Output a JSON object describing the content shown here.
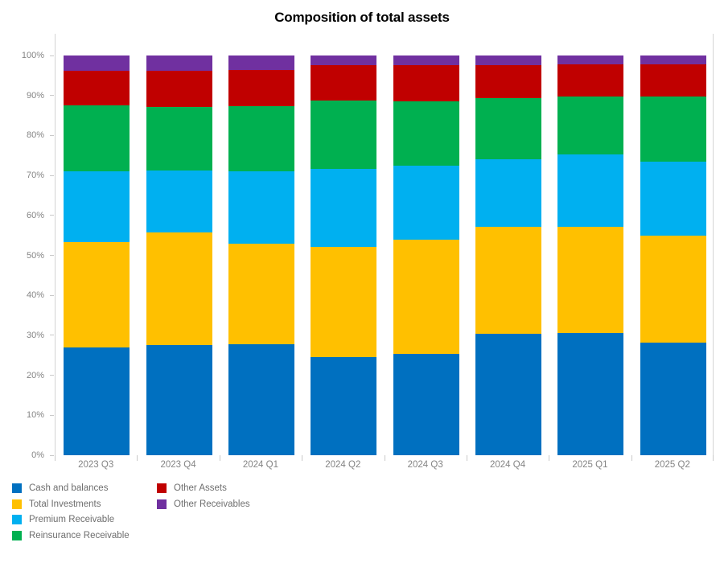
{
  "title": "Composition of total assets",
  "chart_data": {
    "type": "bar",
    "stacked": true,
    "normalized": "percent",
    "title": "Composition of total assets",
    "xlabel": "",
    "ylabel": "",
    "ylim": [
      0,
      100
    ],
    "grid": false,
    "legend_position": "bottom-left",
    "categories": [
      "2023 Q3",
      "2023 Q4",
      "2024 Q1",
      "2024 Q2",
      "2024 Q3",
      "2024 Q4",
      "2025 Q1",
      "2025 Q2"
    ],
    "y_ticks": [
      "0%",
      "10%",
      "20%",
      "30%",
      "40%",
      "50%",
      "60%",
      "70%",
      "80%",
      "90%",
      "100%"
    ],
    "series": [
      {
        "name": "Cash and balances",
        "color": "#0070C0",
        "values": [
          27.0,
          27.5,
          27.7,
          24.5,
          25.4,
          30.4,
          30.6,
          28.2
        ]
      },
      {
        "name": "Total Investments",
        "color": "#FFC000",
        "values": [
          26.3,
          28.2,
          25.3,
          27.7,
          28.5,
          26.8,
          26.5,
          26.7
        ]
      },
      {
        "name": "Premium Receivable",
        "color": "#00B0F0",
        "values": [
          17.7,
          15.6,
          18.0,
          19.4,
          18.5,
          16.8,
          18.2,
          18.6
        ]
      },
      {
        "name": "Reinsurance Receivable",
        "color": "#00B050",
        "values": [
          16.5,
          15.8,
          16.4,
          17.1,
          16.2,
          15.4,
          14.5,
          16.3
        ]
      },
      {
        "name": "Other Assets",
        "color": "#C00000",
        "values": [
          8.7,
          9.1,
          8.9,
          8.8,
          8.9,
          8.2,
          8.0,
          7.9
        ]
      },
      {
        "name": "Other Receivables",
        "color": "#7030A0",
        "values": [
          3.8,
          3.8,
          3.7,
          2.5,
          2.5,
          2.4,
          2.2,
          2.3
        ]
      }
    ]
  },
  "colors": {
    "axis_line": "#d4d4d4",
    "tick": "#c9c9c9",
    "axis_text": "#848484",
    "legend_text": "#6e6e6e",
    "title_text": "#000000"
  }
}
